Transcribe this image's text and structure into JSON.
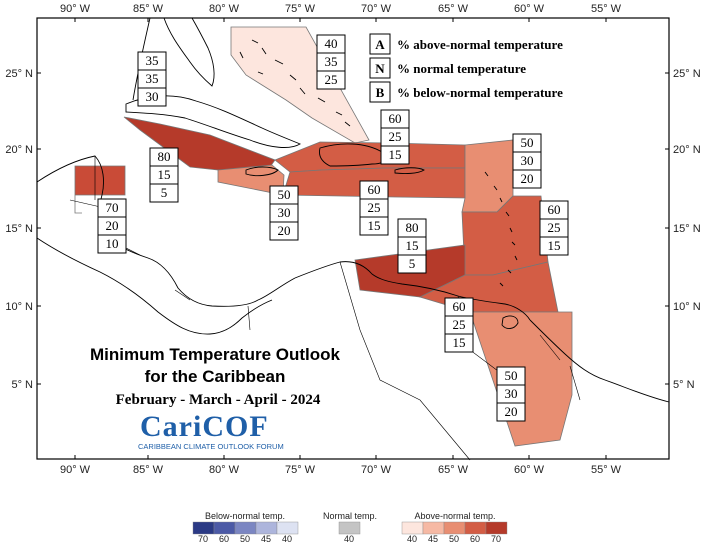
{
  "axes": {
    "lon_labels": [
      "90° W",
      "85° W",
      "80° W",
      "75° W",
      "70° W",
      "65° W",
      "60° W",
      "55° W"
    ],
    "lat_labels": [
      "25° N",
      "20° N",
      "15° N",
      "10° N",
      "5° N"
    ]
  },
  "legend": {
    "items": [
      {
        "key": "A",
        "label": "% above-normal temperature"
      },
      {
        "key": "N",
        "label": "% normal temperature"
      },
      {
        "key": "B",
        "label": "% below-normal temperature"
      }
    ]
  },
  "title": {
    "line1": "Minimum Temperature Outlook",
    "line2": "for the Caribbean",
    "line3": "February - March - April - 2024"
  },
  "logo": {
    "name": "CariCOF",
    "subtitle": "CARIBBEAN CLIMATE OUTLOOK FORUM"
  },
  "regions": [
    {
      "name": "bahamas",
      "probs": [
        "40",
        "35",
        "25"
      ],
      "color": "#fde6de"
    },
    {
      "name": "cuba-jamaica-central",
      "probs": [
        "80",
        "15",
        "5"
      ],
      "color": "#b53a2a"
    },
    {
      "name": "belize-yucatan",
      "probs": [
        "70",
        "20",
        "10"
      ],
      "color": "#c94b37"
    },
    {
      "name": "jamaica-south",
      "probs": [
        "50",
        "30",
        "20"
      ],
      "color": "#e88e72"
    },
    {
      "name": "hispaniola",
      "probs": [
        "60",
        "25",
        "15"
      ],
      "color": "#d35d45"
    },
    {
      "name": "hispaniola-south",
      "probs": [
        "60",
        "25",
        "15"
      ],
      "color": "#d35d45"
    },
    {
      "name": "leeward-islands",
      "probs": [
        "50",
        "30",
        "20"
      ],
      "color": "#e88e72"
    },
    {
      "name": "windward-islands",
      "probs": [
        "60",
        "25",
        "15"
      ],
      "color": "#d35d45"
    },
    {
      "name": "caribbean-south",
      "probs": [
        "80",
        "15",
        "5"
      ],
      "color": "#b53a2a"
    },
    {
      "name": "trinidad-venezuela",
      "probs": [
        "60",
        "25",
        "15"
      ],
      "color": "#d35d45"
    },
    {
      "name": "guianas",
      "probs": [
        "50",
        "30",
        "20"
      ],
      "color": "#e88e72"
    },
    {
      "name": "cuba-west",
      "probs": [
        "35",
        "35",
        "30"
      ],
      "color": "#ffffff"
    }
  ],
  "colorbar": {
    "below": {
      "title": "Below-normal temp.",
      "labels": [
        "70",
        "60",
        "50",
        "45",
        "40"
      ],
      "colors": [
        "#2b3a85",
        "#4c5aa6",
        "#7b86c2",
        "#adb5dc",
        "#dde2f2"
      ]
    },
    "normal": {
      "title": "Normal temp.",
      "labels": [
        "40"
      ],
      "colors": [
        "#c4c4c4"
      ]
    },
    "above": {
      "title": "Above-normal temp.",
      "labels": [
        "40",
        "45",
        "50",
        "60",
        "70"
      ],
      "colors": [
        "#fde6de",
        "#f6b9a4",
        "#e88e72",
        "#d35d45",
        "#b53a2a"
      ]
    }
  }
}
